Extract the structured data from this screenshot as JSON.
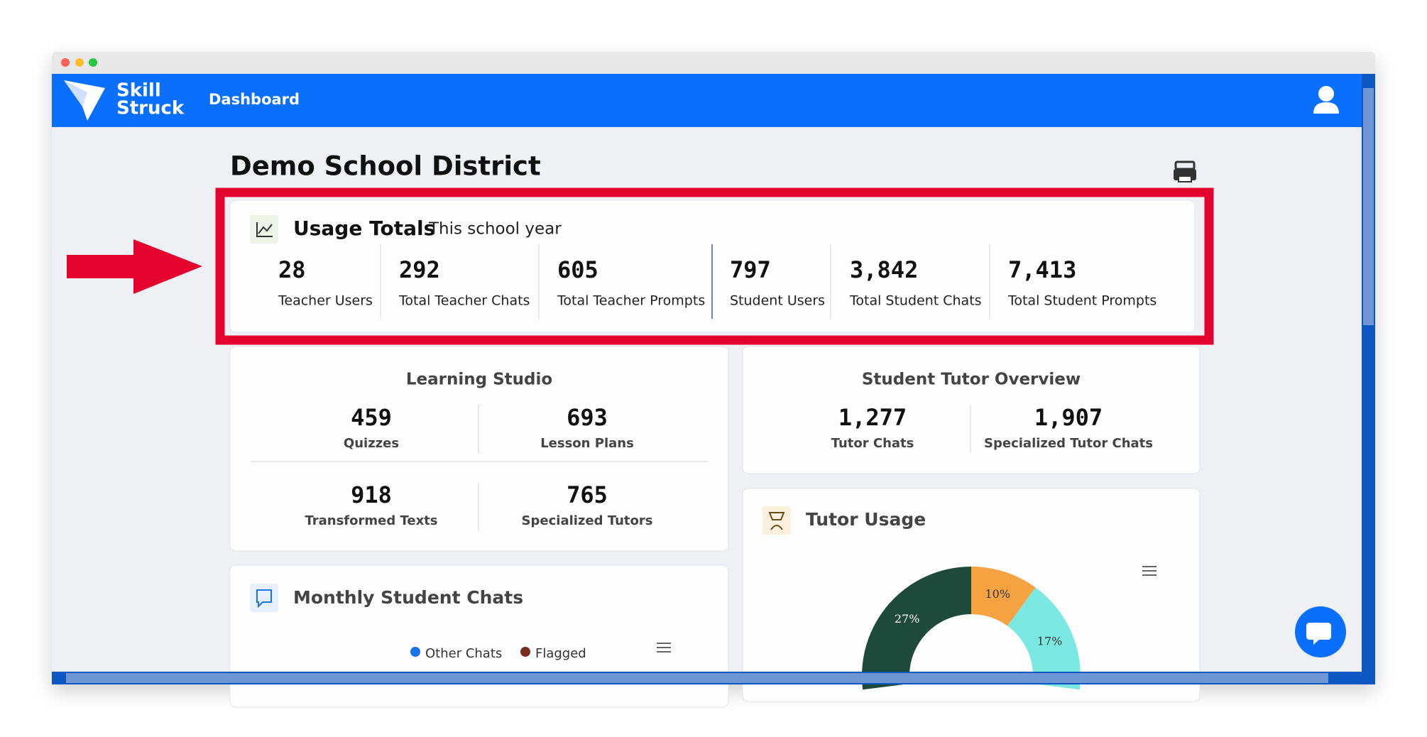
{
  "header": {
    "logo_line1": "Skill",
    "logo_line2": "Struck",
    "nav": "Dashboard"
  },
  "page_title": "Demo School District",
  "usage_totals": {
    "title": "Usage Totals",
    "subtitle": "This school year",
    "stats": [
      {
        "value": "28",
        "label": "Teacher Users"
      },
      {
        "value": "292",
        "label": "Total Teacher Chats"
      },
      {
        "value": "605",
        "label": "Total Teacher Prompts"
      },
      {
        "value": "797",
        "label": "Student Users"
      },
      {
        "value": "3,842",
        "label": "Total Student Chats"
      },
      {
        "value": "7,413",
        "label": "Total Student Prompts"
      }
    ]
  },
  "learning_studio": {
    "title": "Learning Studio",
    "stats": [
      {
        "value": "459",
        "label": "Quizzes"
      },
      {
        "value": "693",
        "label": "Lesson Plans"
      },
      {
        "value": "918",
        "label": "Transformed Texts"
      },
      {
        "value": "765",
        "label": "Specialized Tutors"
      }
    ]
  },
  "student_tutor_overview": {
    "title": "Student Tutor Overview",
    "stats": [
      {
        "value": "1,277",
        "label": "Tutor Chats"
      },
      {
        "value": "1,907",
        "label": "Specialized Tutor Chats"
      }
    ]
  },
  "monthly_student_chats": {
    "title": "Monthly Student Chats",
    "legend": [
      {
        "name": "Other Chats",
        "color": "#1a73e8"
      },
      {
        "name": "Flagged",
        "color": "#7a2e22"
      }
    ]
  },
  "chart_data": {
    "type": "pie",
    "title": "Tutor Usage",
    "values": [
      10,
      17,
      27
    ],
    "value_labels": [
      "10%",
      "17%",
      "27%"
    ],
    "colors": [
      "#f4a340",
      "#7be8e2",
      "#1e4a3c"
    ]
  }
}
